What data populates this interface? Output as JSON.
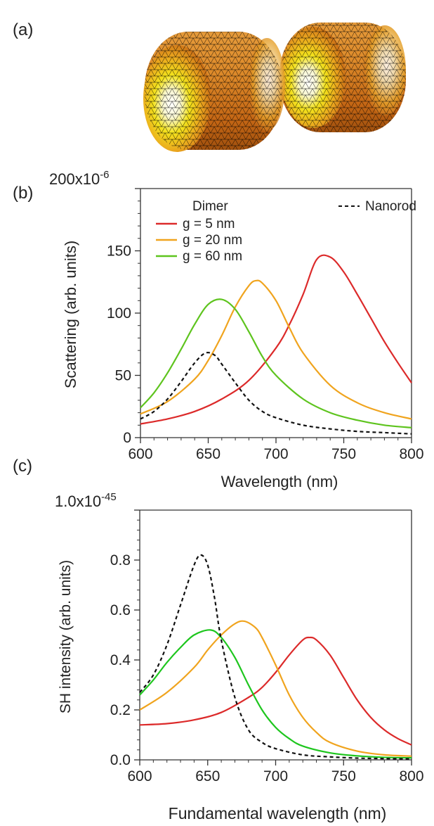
{
  "panels": {
    "a": {
      "label": "(a)"
    },
    "b": {
      "label": "(b)"
    },
    "c": {
      "label": "(c)"
    }
  },
  "colors": {
    "red": "#dc2a2a",
    "orange": "#f0a41e",
    "green": "#5ec41e",
    "green_c": "#1ec61e",
    "black": "#111111",
    "axis": "#333333"
  },
  "chart_data": [
    {
      "id": "b",
      "type": "line",
      "xlabel": "Wavelength (nm)",
      "ylabel": "Scattering (arb. units)",
      "xlim": [
        600,
        800
      ],
      "ylim": [
        0,
        200
      ],
      "xticks": [
        "600",
        "650",
        "700",
        "750",
        "800"
      ],
      "yticks": [
        "0",
        "50",
        "100",
        "150"
      ],
      "y_top_label": {
        "mantissa": "200x10",
        "exponent": "-6"
      },
      "legend": {
        "title": "Dimer",
        "placement": "top"
      },
      "series": [
        {
          "name": "g = 5 nm",
          "color": "#dc2a2a",
          "style": "solid",
          "x": [
            600,
            620,
            640,
            660,
            680,
            700,
            710,
            720,
            730,
            740,
            750,
            760,
            770,
            780,
            790,
            800
          ],
          "y": [
            11,
            15,
            21,
            31,
            46,
            72,
            91,
            115,
            143,
            145,
            133,
            115,
            96,
            77,
            60,
            44
          ]
        },
        {
          "name": "g = 20 nm",
          "color": "#f0a41e",
          "style": "solid",
          "x": [
            600,
            620,
            640,
            650,
            660,
            670,
            680,
            685,
            690,
            700,
            710,
            720,
            740,
            760,
            780,
            800
          ],
          "y": [
            19,
            29,
            47,
            62,
            82,
            105,
            122,
            126,
            124,
            110,
            88,
            68,
            42,
            28,
            20,
            15
          ]
        },
        {
          "name": "g = 60 nm",
          "color": "#5ec41e",
          "style": "solid",
          "x": [
            600,
            610,
            620,
            630,
            640,
            650,
            660,
            670,
            680,
            690,
            700,
            720,
            740,
            760,
            780,
            800
          ],
          "y": [
            24,
            36,
            52,
            71,
            91,
            107,
            111,
            103,
            85,
            65,
            50,
            31,
            20,
            14,
            10,
            8
          ]
        },
        {
          "name": "Nanorod",
          "color": "#111111",
          "style": "dashed",
          "x": [
            600,
            610,
            620,
            630,
            640,
            648,
            655,
            660,
            670,
            680,
            690,
            700,
            720,
            740,
            760,
            780,
            800
          ],
          "y": [
            15,
            21,
            31,
            45,
            60,
            68,
            66,
            59,
            44,
            30,
            21,
            16,
            10,
            7,
            5,
            4,
            3
          ]
        }
      ]
    },
    {
      "id": "c",
      "type": "line",
      "xlabel": "Fundamental wavelength (nm)",
      "ylabel": "SH intensity (arb. units)",
      "xlim": [
        600,
        800
      ],
      "ylim": [
        0,
        1.0
      ],
      "xticks": [
        "600",
        "650",
        "700",
        "750",
        "800"
      ],
      "yticks": [
        "0.0",
        "0.2",
        "0.4",
        "0.6",
        "0.8"
      ],
      "y_top_label": {
        "mantissa": "1.0x10",
        "exponent": "-45"
      },
      "series": [
        {
          "name": "g = 5 nm",
          "color": "#dc2a2a",
          "style": "solid",
          "x": [
            600,
            620,
            640,
            660,
            680,
            690,
            700,
            710,
            720,
            725,
            730,
            740,
            750,
            760,
            770,
            780,
            790,
            800
          ],
          "y": [
            0.14,
            0.145,
            0.16,
            0.19,
            0.25,
            0.29,
            0.35,
            0.42,
            0.48,
            0.49,
            0.48,
            0.42,
            0.33,
            0.24,
            0.17,
            0.12,
            0.085,
            0.06
          ]
        },
        {
          "name": "g = 20 nm",
          "color": "#f0a41e",
          "style": "solid",
          "x": [
            600,
            620,
            640,
            650,
            660,
            670,
            677,
            685,
            690,
            700,
            710,
            720,
            730,
            740,
            760,
            780,
            800
          ],
          "y": [
            0.2,
            0.27,
            0.37,
            0.44,
            0.5,
            0.545,
            0.555,
            0.53,
            0.49,
            0.38,
            0.26,
            0.17,
            0.11,
            0.07,
            0.035,
            0.02,
            0.015
          ]
        },
        {
          "name": "g = 60 nm",
          "color": "#1ec61e",
          "style": "solid",
          "x": [
            600,
            610,
            620,
            630,
            640,
            652,
            660,
            670,
            680,
            690,
            700,
            710,
            720,
            740,
            760,
            780,
            800
          ],
          "y": [
            0.26,
            0.32,
            0.39,
            0.45,
            0.5,
            0.52,
            0.49,
            0.41,
            0.3,
            0.2,
            0.13,
            0.085,
            0.055,
            0.028,
            0.016,
            0.01,
            0.008
          ]
        },
        {
          "name": "Nanorod",
          "color": "#111111",
          "style": "dashed",
          "x": [
            600,
            610,
            620,
            630,
            640,
            645,
            650,
            655,
            660,
            670,
            680,
            690,
            700,
            720,
            740,
            760,
            780,
            800
          ],
          "y": [
            0.27,
            0.34,
            0.46,
            0.62,
            0.78,
            0.82,
            0.78,
            0.65,
            0.48,
            0.25,
            0.12,
            0.07,
            0.045,
            0.02,
            0.012,
            0.007,
            0.005,
            0.004
          ]
        }
      ]
    }
  ]
}
